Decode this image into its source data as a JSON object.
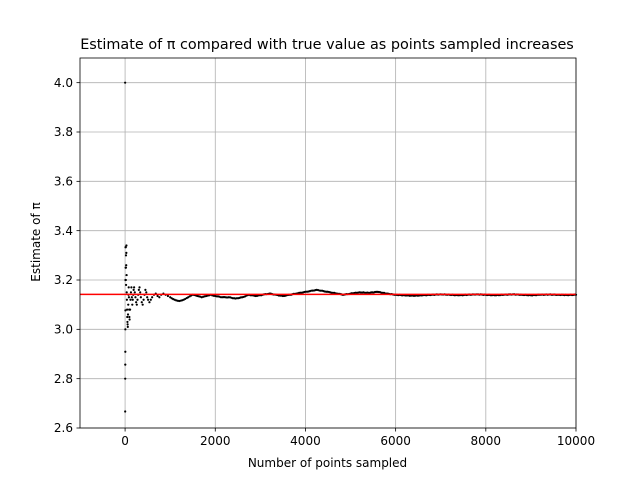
{
  "chart_data": {
    "type": "scatter",
    "title": "Estimate of π compared with true value as points sampled increases",
    "xlabel": "Number of points sampled",
    "ylabel": "Estimate of π",
    "xlim": [
      -1000,
      10000
    ],
    "ylim": [
      2.6,
      4.1
    ],
    "x_ticks": [
      0,
      2000,
      4000,
      6000,
      8000,
      10000
    ],
    "x_tick_labels": [
      "0",
      "2000",
      "4000",
      "6000",
      "8000",
      "10000"
    ],
    "y_ticks": [
      2.6,
      2.8,
      3.0,
      3.2,
      3.4,
      3.6,
      3.8,
      4.0
    ],
    "y_tick_labels": [
      "2.6",
      "2.8",
      "3.0",
      "3.2",
      "3.4",
      "3.6",
      "3.8",
      "4.0"
    ],
    "grid": true,
    "reference_line": {
      "y": 3.14159,
      "color": "#ff0000"
    },
    "series": [
      {
        "color": "#000000",
        "x": [
          1,
          2,
          3,
          4,
          5,
          6,
          7,
          8,
          10,
          12,
          14,
          16,
          18,
          20,
          22,
          25,
          28,
          30,
          33,
          36,
          40,
          44,
          48,
          52,
          56,
          60,
          65,
          70,
          75,
          80,
          85,
          90,
          95,
          100,
          110,
          120,
          130,
          140,
          150,
          160,
          170,
          180,
          190,
          200,
          215,
          230,
          245,
          260,
          275,
          290,
          305,
          320,
          335,
          350,
          370,
          390,
          410,
          430,
          450,
          470,
          490,
          510,
          540,
          570,
          600,
          640,
          680,
          720,
          760,
          800,
          850,
          900,
          950,
          1000,
          1100,
          1200,
          1300,
          1400,
          1500,
          1600,
          1700,
          1800,
          1900,
          2000,
          2150,
          2300,
          2450,
          2600,
          2750,
          2900,
          3050,
          3200,
          3350,
          3500,
          3650,
          3800,
          3950,
          4100,
          4250,
          4400,
          4550,
          4700,
          4850,
          5000,
          5200,
          5400,
          5600,
          5800,
          6000,
          6200,
          6400,
          6600,
          6800,
          7000,
          7200,
          7400,
          7600,
          7800,
          8000,
          8200,
          8400,
          8600,
          8800,
          9000,
          9200,
          9400,
          9600,
          9800,
          10000
        ],
        "y": [
          4.0,
          2.667,
          2.8,
          2.857,
          2.909,
          3.0,
          3.077,
          3.2,
          3.333,
          3.25,
          3.333,
          3.2,
          3.25,
          3.3,
          3.18,
          3.26,
          3.31,
          3.34,
          3.22,
          3.15,
          3.12,
          3.08,
          3.05,
          3.03,
          3.02,
          3.01,
          3.06,
          3.1,
          3.14,
          3.17,
          3.13,
          3.08,
          3.05,
          3.04,
          3.08,
          3.12,
          3.15,
          3.17,
          3.13,
          3.1,
          3.12,
          3.14,
          3.16,
          3.17,
          3.15,
          3.13,
          3.11,
          3.1,
          3.12,
          3.14,
          3.16,
          3.17,
          3.15,
          3.13,
          3.11,
          3.1,
          3.12,
          3.14,
          3.16,
          3.15,
          3.13,
          3.12,
          3.11,
          3.12,
          3.13,
          3.14,
          3.145,
          3.135,
          3.13,
          3.14,
          3.145,
          3.14,
          3.135,
          3.13,
          3.12,
          3.115,
          3.12,
          3.13,
          3.14,
          3.135,
          3.13,
          3.135,
          3.14,
          3.135,
          3.13,
          3.13,
          3.125,
          3.13,
          3.14,
          3.135,
          3.14,
          3.145,
          3.14,
          3.135,
          3.14,
          3.145,
          3.15,
          3.155,
          3.16,
          3.155,
          3.15,
          3.145,
          3.14,
          3.145,
          3.15,
          3.148,
          3.152,
          3.145,
          3.14,
          3.138,
          3.136,
          3.138,
          3.14,
          3.142,
          3.14,
          3.138,
          3.14,
          3.142,
          3.14,
          3.138,
          3.14,
          3.142,
          3.14,
          3.138,
          3.14,
          3.141,
          3.14,
          3.139,
          3.14
        ]
      }
    ]
  }
}
